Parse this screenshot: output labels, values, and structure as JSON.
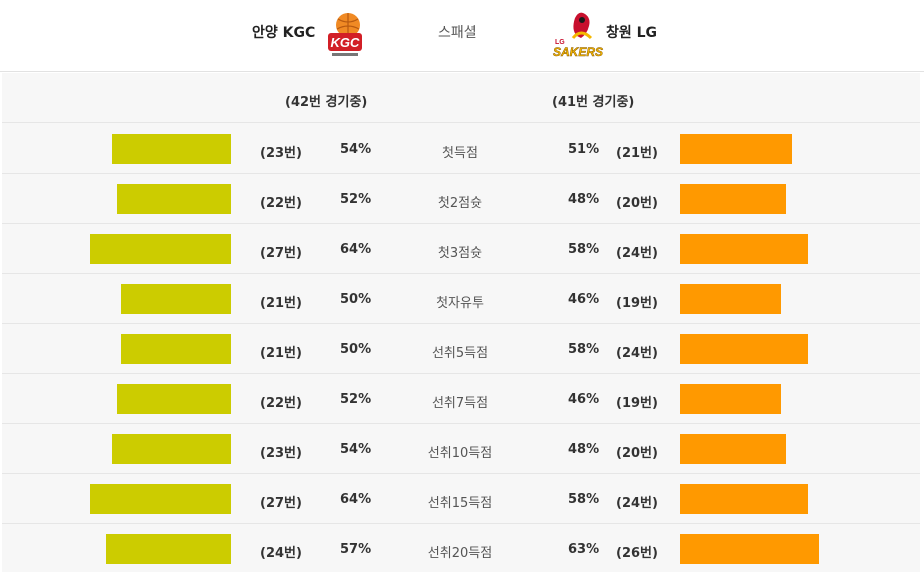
{
  "header": {
    "home_team": "안양 KGC",
    "center_title": "스패셜",
    "away_team": "창원 LG",
    "home_logo_text": "KGC",
    "away_logo_text": "SAKERS",
    "away_logo_small": "LG"
  },
  "games": {
    "home": "(42번 경기중)",
    "away": "(41번 경기중)"
  },
  "colors": {
    "home_bar": "#cccc00",
    "away_bar": "#ff9900"
  },
  "rows": [
    {
      "label": "첫득점",
      "home_count": "(23번)",
      "home_pct": "54%",
      "home_value": 54,
      "away_pct": "51%",
      "away_count": "(21번)",
      "away_value": 51
    },
    {
      "label": "첫2점슛",
      "home_count": "(22번)",
      "home_pct": "52%",
      "home_value": 52,
      "away_pct": "48%",
      "away_count": "(20번)",
      "away_value": 48
    },
    {
      "label": "첫3점슛",
      "home_count": "(27번)",
      "home_pct": "64%",
      "home_value": 64,
      "away_pct": "58%",
      "away_count": "(24번)",
      "away_value": 58
    },
    {
      "label": "첫자유투",
      "home_count": "(21번)",
      "home_pct": "50%",
      "home_value": 50,
      "away_pct": "46%",
      "away_count": "(19번)",
      "away_value": 46
    },
    {
      "label": "선취5득점",
      "home_count": "(21번)",
      "home_pct": "50%",
      "home_value": 50,
      "away_pct": "58%",
      "away_count": "(24번)",
      "away_value": 58
    },
    {
      "label": "선취7득점",
      "home_count": "(22번)",
      "home_pct": "52%",
      "home_value": 52,
      "away_pct": "46%",
      "away_count": "(19번)",
      "away_value": 46
    },
    {
      "label": "선취10득점",
      "home_count": "(23번)",
      "home_pct": "54%",
      "home_value": 54,
      "away_pct": "48%",
      "away_count": "(20번)",
      "away_value": 48
    },
    {
      "label": "선취15득점",
      "home_count": "(27번)",
      "home_pct": "64%",
      "home_value": 64,
      "away_pct": "58%",
      "away_count": "(24번)",
      "away_value": 58
    },
    {
      "label": "선취20득점",
      "home_count": "(24번)",
      "home_pct": "57%",
      "home_value": 57,
      "away_pct": "63%",
      "away_count": "(26번)",
      "away_value": 63
    }
  ]
}
